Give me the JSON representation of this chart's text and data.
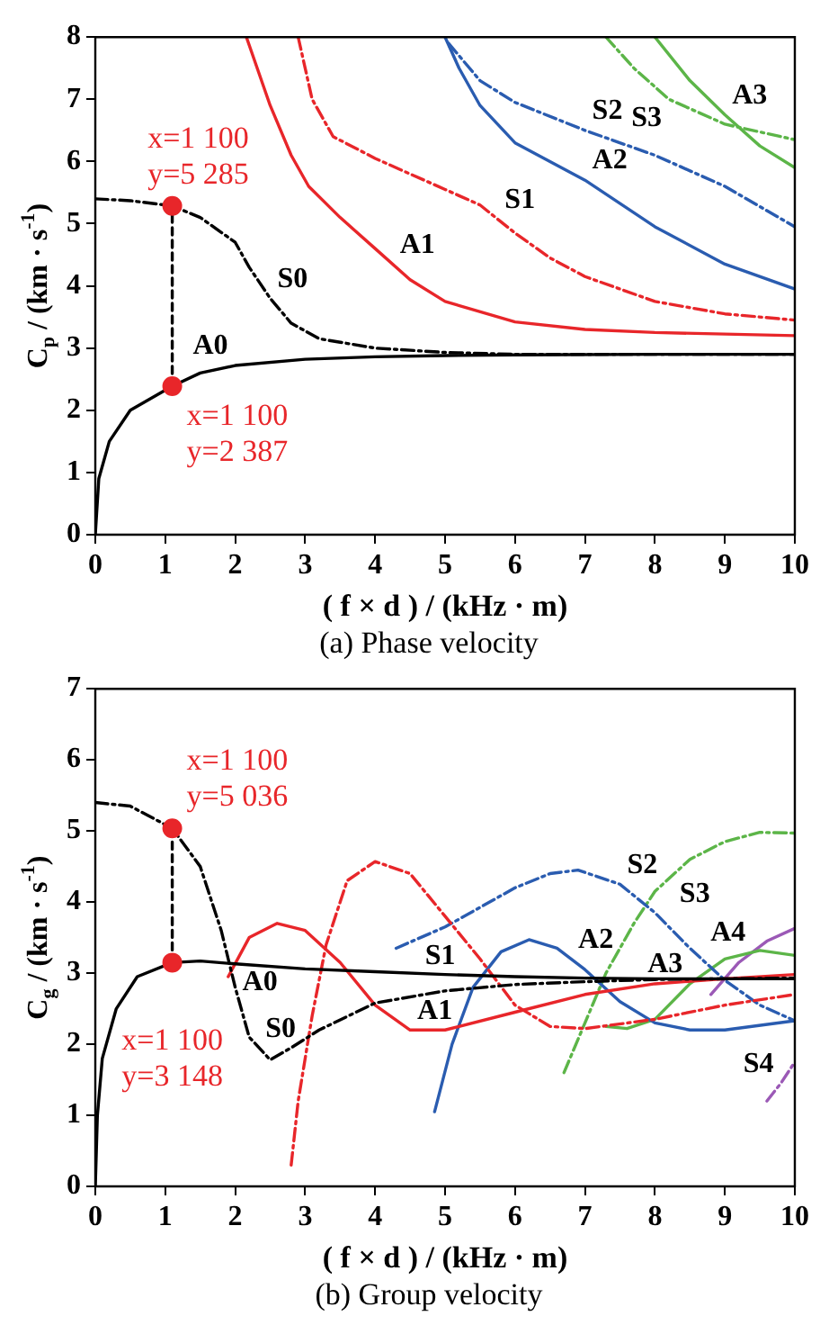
{
  "chart_data": [
    {
      "type": "line",
      "title": "(a) Phase velocity",
      "xlabel": "( f × d ) / (kHz · m)",
      "ylabel": "C$_{p}$ / (km · s$^{-1}$)",
      "xlim": [
        0,
        10
      ],
      "xticks": [
        0,
        1,
        2,
        3,
        4,
        5,
        6,
        7,
        8,
        9,
        10
      ],
      "ylim": [
        0,
        8
      ],
      "yticks": [
        0,
        1,
        2,
        3,
        4,
        5,
        6,
        7,
        8
      ],
      "grid": false,
      "legend": false,
      "marker": "none",
      "series": [
        {
          "name": "A0",
          "color": "#000000",
          "line_style": "solid",
          "x": [
            0,
            0.05,
            0.2,
            0.5,
            1.1,
            1.5,
            2,
            3,
            4,
            5,
            6,
            8,
            10
          ],
          "values": [
            0,
            0.9,
            1.5,
            2.0,
            2.387,
            2.6,
            2.72,
            2.82,
            2.86,
            2.88,
            2.89,
            2.9,
            2.9
          ]
        },
        {
          "name": "S0",
          "color": "#000000",
          "line_style": "dashdot",
          "x": [
            0,
            0.5,
            1.1,
            1.5,
            2,
            2.2,
            2.5,
            2.8,
            3.2,
            4,
            5,
            6,
            10
          ],
          "values": [
            5.4,
            5.37,
            5.285,
            5.1,
            4.7,
            4.3,
            3.8,
            3.4,
            3.15,
            3.0,
            2.93,
            2.9,
            2.9
          ]
        },
        {
          "name": "A1",
          "color": "#e8262a",
          "line_style": "solid",
          "x": [
            2.16,
            2.5,
            2.8,
            3.05,
            3.5,
            4,
            4.5,
            5,
            6,
            7,
            8,
            10
          ],
          "values": [
            8,
            6.9,
            6.1,
            5.6,
            5.1,
            4.6,
            4.1,
            3.75,
            3.42,
            3.3,
            3.25,
            3.2
          ]
        },
        {
          "name": "S1",
          "color": "#e8262a",
          "line_style": "dashdot",
          "x": [
            2.9,
            3.1,
            3.4,
            4,
            5,
            5.5,
            6,
            6.5,
            7,
            8,
            9,
            10
          ],
          "values": [
            8,
            7.0,
            6.4,
            6.05,
            5.55,
            5.3,
            4.85,
            4.45,
            4.15,
            3.75,
            3.55,
            3.45
          ]
        },
        {
          "name": "A2",
          "color": "#2a5cb0",
          "line_style": "solid",
          "x": [
            5,
            5.2,
            5.5,
            6,
            7,
            8,
            9,
            10
          ],
          "values": [
            8,
            7.5,
            6.9,
            6.3,
            5.7,
            4.95,
            4.35,
            3.95
          ]
        },
        {
          "name": "S2",
          "color": "#2a5cb0",
          "line_style": "dashdot",
          "x": [
            5.05,
            5.5,
            6,
            7,
            8,
            9,
            10
          ],
          "values": [
            7.9,
            7.3,
            6.95,
            6.5,
            6.1,
            5.6,
            4.95
          ]
        },
        {
          "name": "S3",
          "color": "#5cb548",
          "line_style": "dashdot",
          "x": [
            7.3,
            7.7,
            8.2,
            9,
            10
          ],
          "values": [
            8,
            7.5,
            7.0,
            6.6,
            6.35
          ]
        },
        {
          "name": "A3",
          "color": "#5cb548",
          "line_style": "solid",
          "x": [
            8.0,
            8.5,
            9,
            9.5,
            10
          ],
          "values": [
            8,
            7.3,
            6.75,
            6.25,
            5.9
          ]
        },
        {
          "color": "#000000",
          "line_style": "dashed",
          "x": [
            1.1,
            1.1
          ],
          "values": [
            2.387,
            5.285
          ]
        },
        {
          "type": "scatter",
          "color": "#e8262a",
          "marker": "circle",
          "x": [
            1.1,
            1.1
          ],
          "values": [
            5.285,
            2.387
          ],
          "value_labels": [
            "x=1 100\ny=5 285",
            "x=1 100\ny=2 387"
          ]
        }
      ]
    },
    {
      "type": "line",
      "title": "(b) Group velocity",
      "xlabel": "( f × d ) / (kHz · m)",
      "ylabel": "C$_{g}$ / (km · s$^{-1}$)",
      "xlim": [
        0,
        10
      ],
      "xticks": [
        0,
        1,
        2,
        3,
        4,
        5,
        6,
        7,
        8,
        9,
        10
      ],
      "ylim": [
        0,
        7
      ],
      "yticks": [
        0,
        1,
        2,
        3,
        4,
        5,
        6,
        7
      ],
      "grid": false,
      "legend": false,
      "marker": "none",
      "series": [
        {
          "name": "A0",
          "color": "#000000",
          "line_style": "solid",
          "x": [
            0,
            0.03,
            0.1,
            0.3,
            0.6,
            1.1,
            1.5,
            2,
            3,
            4,
            5,
            6,
            7,
            8,
            10
          ],
          "values": [
            0,
            1.0,
            1.8,
            2.5,
            2.95,
            3.148,
            3.17,
            3.13,
            3.06,
            3.02,
            2.98,
            2.95,
            2.93,
            2.92,
            2.92
          ]
        },
        {
          "name": "S0",
          "color": "#000000",
          "line_style": "dashdot",
          "x": [
            0,
            0.5,
            1.1,
            1.5,
            1.8,
            2.0,
            2.2,
            2.5,
            2.8,
            3.2,
            4,
            5,
            6,
            7,
            8,
            10
          ],
          "values": [
            5.4,
            5.35,
            5.036,
            4.5,
            3.6,
            2.8,
            2.1,
            1.78,
            1.95,
            2.2,
            2.58,
            2.75,
            2.84,
            2.88,
            2.91,
            2.93
          ]
        },
        {
          "name": "A1",
          "color": "#e8262a",
          "line_style": "solid",
          "x": [
            1.9,
            2.2,
            2.6,
            3,
            3.5,
            4,
            4.5,
            5,
            6,
            7,
            8,
            9,
            10
          ],
          "values": [
            2.95,
            3.5,
            3.7,
            3.6,
            3.15,
            2.55,
            2.2,
            2.2,
            2.45,
            2.7,
            2.85,
            2.92,
            2.98
          ]
        },
        {
          "name": "S1",
          "color": "#e8262a",
          "line_style": "dashdot",
          "x": [
            2.8,
            2.9,
            3.1,
            3.3,
            3.6,
            4.0,
            4.5,
            5,
            5.5,
            6,
            6.5,
            7,
            8,
            9,
            10
          ],
          "values": [
            0.3,
            1.2,
            2.4,
            3.4,
            4.3,
            4.57,
            4.4,
            3.8,
            3.2,
            2.55,
            2.25,
            2.22,
            2.35,
            2.55,
            2.7
          ]
        },
        {
          "name": "A2",
          "color": "#2a5cb0",
          "line_style": "solid",
          "x": [
            4.85,
            5.1,
            5.4,
            5.8,
            6.2,
            6.6,
            7,
            7.5,
            8,
            8.5,
            9,
            10
          ],
          "values": [
            1.05,
            2.0,
            2.8,
            3.3,
            3.47,
            3.35,
            3.05,
            2.6,
            2.3,
            2.2,
            2.2,
            2.33
          ]
        },
        {
          "name": "S2",
          "color": "#2a5cb0",
          "line_style": "dashdot",
          "x": [
            4.3,
            5,
            6,
            6.5,
            6.9,
            7.5,
            8,
            8.5,
            9,
            9.5,
            10
          ],
          "values": [
            3.35,
            3.65,
            4.2,
            4.4,
            4.45,
            4.25,
            3.85,
            3.35,
            2.9,
            2.55,
            2.33
          ]
        },
        {
          "name": "S3",
          "color": "#5cb548",
          "line_style": "dashdot",
          "x": [
            6.7,
            7,
            7.3,
            7.7,
            8,
            8.5,
            9,
            9.5,
            10
          ],
          "values": [
            1.6,
            2.3,
            3.0,
            3.7,
            4.15,
            4.6,
            4.85,
            4.98,
            4.97
          ]
        },
        {
          "name": "A3",
          "color": "#5cb548",
          "line_style": "solid",
          "x": [
            7.3,
            7.6,
            8,
            8.5,
            9,
            9.5,
            10
          ],
          "values": [
            2.25,
            2.22,
            2.35,
            2.85,
            3.2,
            3.32,
            3.25
          ]
        },
        {
          "name": "A4",
          "color": "#9b59b6",
          "line_style": "solid",
          "x": [
            8.8,
            9.2,
            9.6,
            10
          ],
          "values": [
            2.7,
            3.15,
            3.45,
            3.63
          ]
        },
        {
          "name": "S4",
          "color": "#9b59b6",
          "line_style": "dashdot",
          "x": [
            9.6,
            9.8,
            10
          ],
          "values": [
            1.2,
            1.45,
            1.75
          ]
        },
        {
          "color": "#000000",
          "line_style": "dashed",
          "x": [
            1.1,
            1.1
          ],
          "values": [
            3.148,
            5.036
          ]
        },
        {
          "type": "scatter",
          "color": "#e8262a",
          "marker": "circle",
          "x": [
            1.1,
            1.1
          ],
          "values": [
            5.036,
            3.148
          ],
          "value_labels": [
            "x=1 100\ny=5 036",
            "x=1 100\ny=3 148"
          ]
        }
      ]
    }
  ]
}
